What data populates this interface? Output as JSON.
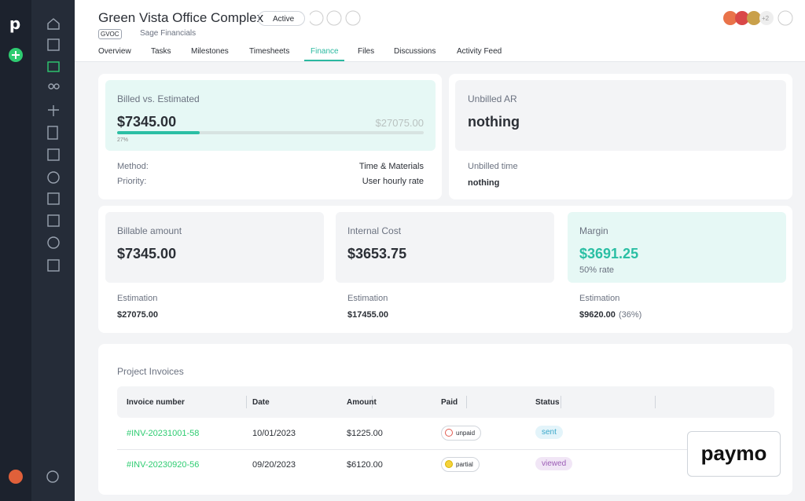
{
  "header": {
    "title": "Green Vista Office Complex",
    "status": "Active",
    "code": "GVOC",
    "client": "Sage Financials",
    "avatar_more": "+2"
  },
  "tabs": {
    "items": [
      "Overview",
      "Tasks",
      "Milestones",
      "Timesheets",
      "Finance",
      "Files",
      "Discussions",
      "Activity Feed"
    ],
    "active": 4
  },
  "billed": {
    "label": "Billed vs. Estimated",
    "billed": "$7345.00",
    "estimated": "$27075.00",
    "progress": 27,
    "progress_label": "27%",
    "method_label": "Method:",
    "method": "Time & Materials",
    "priority_label": "Priority:",
    "priority": "User hourly rate"
  },
  "unbilled": {
    "label": "Unbilled AR",
    "value": "nothing",
    "time_label": "Unbilled time",
    "time_value": "nothing"
  },
  "cards": [
    {
      "label": "Billable amount",
      "value": "$7345.00",
      "estimation_label": "Estimation",
      "estimation": "$27075.00"
    },
    {
      "label": "Internal Cost",
      "value": "$3653.75",
      "estimation_label": "Estimation",
      "estimation": "$17455.00"
    },
    {
      "label": "Margin",
      "value": "$3691.25",
      "rate": "50% rate",
      "estimation_label": "Estimation",
      "estimation": "$9620.00",
      "estimation_note": "(36%)"
    }
  ],
  "invoices": {
    "title": "Project Invoices",
    "columns": [
      "Invoice number",
      "Date",
      "Amount",
      "Paid",
      "Status"
    ],
    "rows": [
      [
        "#INV-20231001-58",
        "10/01/2023",
        "$1225.00",
        "unpaid",
        "sent"
      ],
      [
        "#INV-20230920-56",
        "09/20/2023",
        "$6120.00",
        "partial",
        "viewed"
      ]
    ]
  },
  "brand": "paymo"
}
